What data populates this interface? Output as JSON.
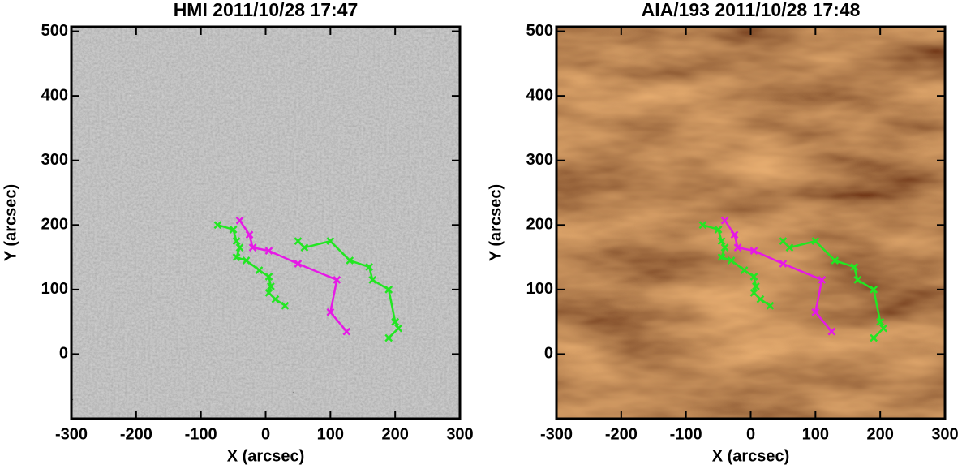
{
  "chart_data": [
    {
      "type": "line",
      "title": "HMI 2011/10/28 17:47",
      "xlabel": "X (arcsec)",
      "ylabel": "Y (arcsec)",
      "background": "magnetogram",
      "xlim": [
        -300,
        300
      ],
      "ylim": [
        -100,
        507
      ],
      "xticks": [
        -300,
        -200,
        -100,
        0,
        100,
        200,
        300
      ],
      "yticks": [
        0,
        100,
        200,
        300,
        400,
        500
      ],
      "series": [
        {
          "color": "#22e622",
          "x": [
            -74,
            -50,
            -45,
            -40,
            -45,
            -30,
            -10,
            5,
            8,
            5,
            15,
            30
          ],
          "values": [
            200,
            193,
            175,
            165,
            150,
            145,
            130,
            120,
            105,
            95,
            85,
            75
          ]
        },
        {
          "color": "#22e622",
          "x": [
            50,
            60,
            100,
            130,
            160,
            165,
            190,
            200,
            205,
            190
          ],
          "values": [
            175,
            165,
            175,
            145,
            135,
            115,
            100,
            50,
            40,
            25
          ]
        },
        {
          "color": "#e619e6",
          "x": [
            -40,
            -25,
            -20,
            5,
            50,
            110,
            100,
            125
          ],
          "values": [
            207,
            185,
            165,
            160,
            140,
            115,
            65,
            35
          ]
        }
      ]
    },
    {
      "type": "line",
      "title": "AIA/193 2011/10/28 17:48",
      "xlabel": "X (arcsec)",
      "ylabel": "Y (arcsec)",
      "background": "euv",
      "xlim": [
        -300,
        300
      ],
      "ylim": [
        -100,
        507
      ],
      "xticks": [
        -300,
        -200,
        -100,
        0,
        100,
        200,
        300
      ],
      "yticks": [
        0,
        100,
        200,
        300,
        400,
        500
      ],
      "series": [
        {
          "color": "#22e622",
          "x": [
            -74,
            -50,
            -45,
            -40,
            -45,
            -30,
            -10,
            5,
            8,
            5,
            15,
            30
          ],
          "values": [
            200,
            193,
            175,
            165,
            150,
            145,
            130,
            120,
            105,
            95,
            85,
            75
          ]
        },
        {
          "color": "#22e622",
          "x": [
            50,
            60,
            100,
            130,
            160,
            165,
            190,
            200,
            205,
            190
          ],
          "values": [
            175,
            165,
            175,
            145,
            135,
            115,
            100,
            50,
            40,
            25
          ]
        },
        {
          "color": "#e619e6",
          "x": [
            -40,
            -25,
            -20,
            5,
            50,
            110,
            100,
            125
          ],
          "values": [
            207,
            185,
            165,
            160,
            140,
            115,
            65,
            35
          ]
        }
      ]
    }
  ]
}
